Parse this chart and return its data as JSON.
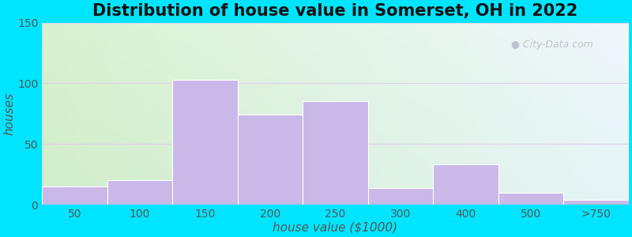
{
  "title": "Distribution of house value in Somerset, OH in 2022",
  "xlabel": "house value ($1000)",
  "ylabel": "houses",
  "bar_labels": [
    "50",
    "100",
    "150",
    "200",
    "250",
    "300",
    "400",
    "500",
    ">750"
  ],
  "bar_values": [
    15,
    20,
    103,
    74,
    85,
    14,
    33,
    10,
    4
  ],
  "bar_color": "#c9b8e8",
  "bar_edgecolor": "#c9b8e8",
  "ylim": [
    0,
    150
  ],
  "yticks": [
    0,
    50,
    100,
    150
  ],
  "background_outer": "#00e5ff",
  "grad_topleft": [
    0.85,
    0.95,
    0.82
  ],
  "grad_topright": [
    0.94,
    0.97,
    0.99
  ],
  "grad_botleft": [
    0.82,
    0.93,
    0.79
  ],
  "grad_botright": [
    0.9,
    0.96,
    0.97
  ],
  "title_fontsize": 15,
  "axis_label_fontsize": 11,
  "tick_fontsize": 10,
  "watermark_text": "City-Data.com",
  "watermark_color": "#b8b8c8",
  "grid_color": "#e0d0e8",
  "tick_label_color": "#555555"
}
